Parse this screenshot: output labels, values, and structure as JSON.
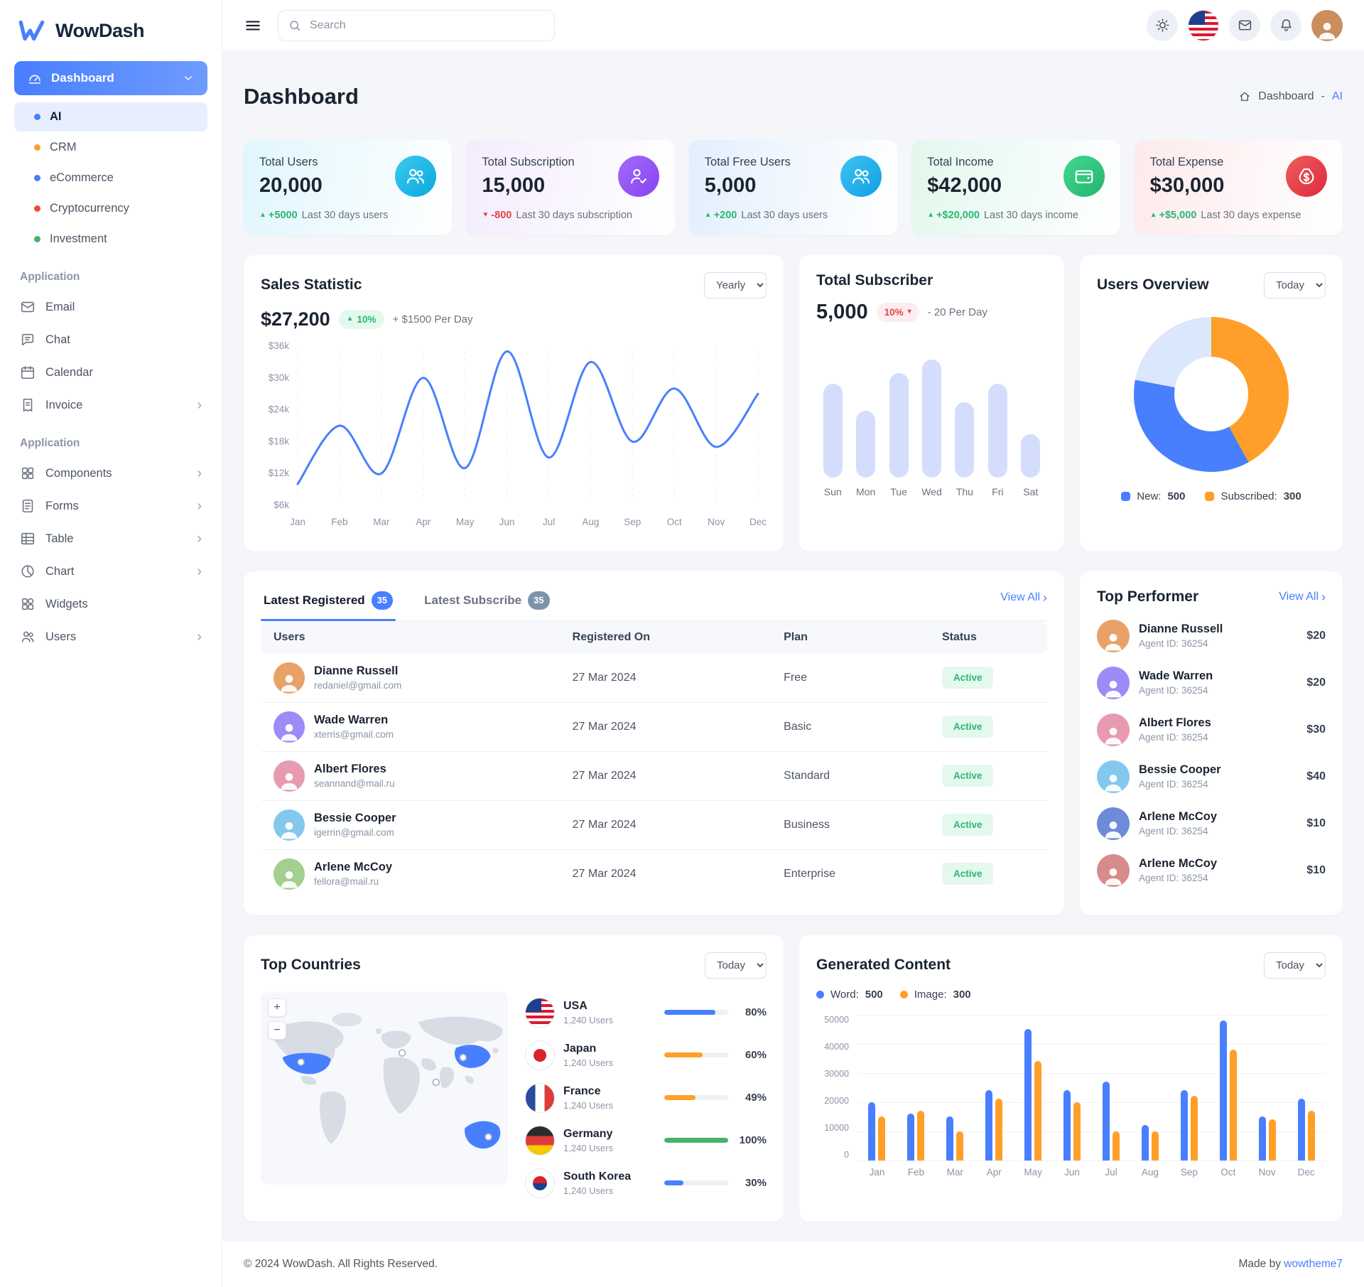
{
  "brand": {
    "name": "WowDash"
  },
  "topbar": {
    "search_placeholder": "Search"
  },
  "sidebar": {
    "dashboard": {
      "label": "Dashboard",
      "icon": "speedometer",
      "items": [
        {
          "label": "AI",
          "dot": "#487fff",
          "active": true
        },
        {
          "label": "CRM",
          "dot": "#ff9f29"
        },
        {
          "label": "eCommerce",
          "dot": "#487fff"
        },
        {
          "label": "Cryptocurrency",
          "dot": "#ef4a3c"
        },
        {
          "label": "Investment",
          "dot": "#45b369"
        }
      ]
    },
    "sections": [
      {
        "label": "Application",
        "items": [
          {
            "label": "Email",
            "icon": "email",
            "chevron": ""
          },
          {
            "label": "Chat",
            "icon": "chat",
            "chevron": ""
          },
          {
            "label": "Calendar",
            "icon": "calendar",
            "chevron": ""
          },
          {
            "label": "Invoice",
            "icon": "invoice",
            "chevron": "›"
          }
        ]
      },
      {
        "label": "Application",
        "items": [
          {
            "label": "Components",
            "icon": "components",
            "chevron": "›"
          },
          {
            "label": "Forms",
            "icon": "forms",
            "chevron": "›"
          },
          {
            "label": "Table",
            "icon": "table",
            "chevron": "›"
          },
          {
            "label": "Chart",
            "icon": "chart",
            "chevron": "›"
          },
          {
            "label": "Widgets",
            "icon": "widgets",
            "chevron": ""
          },
          {
            "label": "Users",
            "icon": "users",
            "chevron": "›"
          }
        ]
      }
    ]
  },
  "page": {
    "title": "Dashboard",
    "breadcrumb_root": "Dashboard",
    "breadcrumb_sep": "-",
    "breadcrumb_current": "AI"
  },
  "stats": [
    {
      "label": "Total Users",
      "value": "20,000",
      "icon": "users-group",
      "tint": "#e0f6fd",
      "icon_bg": "linear-gradient(135deg,#3ec8f0,#0aa8dd)",
      "delta_icon": "▲",
      "delta": "+5000",
      "delta_color": "#2bb673",
      "note": "Last 30 days users"
    },
    {
      "label": "Total Subscription",
      "value": "15,000",
      "icon": "user-check",
      "tint": "#f4ecfd",
      "icon_bg": "linear-gradient(135deg,#a16bfa,#8744ef)",
      "delta_icon": "▼",
      "delta": "-800",
      "delta_color": "#e4443f",
      "note": "Last 30 days subscription"
    },
    {
      "label": "Total Free Users",
      "value": "5,000",
      "icon": "users-group",
      "tint": "#e3effd",
      "icon_bg": "linear-gradient(135deg,#3ec3f0,#11a0e6)",
      "delta_icon": "▲",
      "delta": "+200",
      "delta_color": "#2bb673",
      "note": "Last 30 days users"
    },
    {
      "label": "Total Income",
      "value": "$42,000",
      "icon": "wallet",
      "tint": "#e2f8ed",
      "icon_bg": "linear-gradient(135deg,#42d790,#23b56d)",
      "delta_icon": "▲",
      "delta": "+$20,000",
      "delta_color": "#2bb673",
      "note": "Last 30 days income"
    },
    {
      "label": "Total Expense",
      "value": "$30,000",
      "icon": "money-bag",
      "tint": "#fdeaec",
      "icon_bg": "linear-gradient(135deg,#f05c5c,#dc2b3e)",
      "delta_icon": "▲",
      "delta": "+$5,000",
      "delta_color": "#2bb673",
      "note": "Last 30 days expense"
    }
  ],
  "sales": {
    "title": "Sales Statistic",
    "period": "Yearly",
    "value": "$27,200",
    "badge_icon": "▲",
    "badge": "10%",
    "per_day": "+ $1500 Per Day"
  },
  "subscriber": {
    "title": "Total Subscriber",
    "value": "5,000",
    "badge": "10%",
    "badge_icon": "▾",
    "per_day": "- 20 Per Day"
  },
  "users_overview": {
    "title": "Users Overview",
    "period": "Today",
    "legend": [
      {
        "label": "New:",
        "value": "500",
        "color": "#487fff"
      },
      {
        "label": "Subscribed:",
        "value": "300",
        "color": "#ff9f29"
      }
    ]
  },
  "latest": {
    "tabs": [
      {
        "label": "Latest Registered",
        "count": "35"
      },
      {
        "label": "Latest Subscribe",
        "count": "35"
      }
    ],
    "view_all": "View All",
    "columns": [
      "Users",
      "Registered On",
      "Plan",
      "Status"
    ],
    "rows": [
      {
        "name": "Dianne Russell",
        "email": "redaniel@gmail.com",
        "registered": "27 Mar 2024",
        "plan": "Free",
        "status": "Active",
        "avatar": "#e8a268"
      },
      {
        "name": "Wade Warren",
        "email": "xterris@gmail.com",
        "registered": "27 Mar 2024",
        "plan": "Basic",
        "status": "Active",
        "avatar": "#9b8cf7"
      },
      {
        "name": "Albert Flores",
        "email": "seannand@mail.ru",
        "registered": "27 Mar 2024",
        "plan": "Standard",
        "status": "Active",
        "avatar": "#e79ab0"
      },
      {
        "name": "Bessie Cooper",
        "email": "igerrin@gmail.com",
        "registered": "27 Mar 2024",
        "plan": "Business",
        "status": "Active",
        "avatar": "#84c8ee"
      },
      {
        "name": "Arlene McCoy",
        "email": "fellora@mail.ru",
        "registered": "27 Mar 2024",
        "plan": "Enterprise",
        "status": "Active",
        "avatar": "#a4cf8e"
      }
    ]
  },
  "top_performer": {
    "title": "Top Performer",
    "view_all": "View All",
    "items": [
      {
        "name": "Dianne Russell",
        "sub": "Agent ID: 36254",
        "amount": "$20",
        "avatar": "#e8a268"
      },
      {
        "name": "Wade Warren",
        "sub": "Agent ID: 36254",
        "amount": "$20",
        "avatar": "#9b8cf7"
      },
      {
        "name": "Albert Flores",
        "sub": "Agent ID: 36254",
        "amount": "$30",
        "avatar": "#e79ab0"
      },
      {
        "name": "Bessie Cooper",
        "sub": "Agent ID: 36254",
        "amount": "$40",
        "avatar": "#84c8ee"
      },
      {
        "name": "Arlene McCoy",
        "sub": "Agent ID: 36254",
        "amount": "$10",
        "avatar": "#6d8bd8"
      },
      {
        "name": "Arlene McCoy",
        "sub": "Agent ID: 36254",
        "amount": "$10",
        "avatar": "#d88b8b"
      }
    ]
  },
  "top_countries": {
    "title": "Top Countries",
    "period": "Today",
    "zoom_in": "+",
    "zoom_out": "−",
    "items": [
      {
        "name": "USA",
        "users": "1,240 Users",
        "percent": "80%",
        "bar_color": "#487fff",
        "flag": "usa"
      },
      {
        "name": "Japan",
        "users": "1,240 Users",
        "percent": "60%",
        "bar_color": "#ff9f29",
        "flag": "japan"
      },
      {
        "name": "France",
        "users": "1,240 Users",
        "percent": "49%",
        "bar_color": "#ff9f29",
        "flag": "france"
      },
      {
        "name": "Germany",
        "users": "1,240 Users",
        "percent": "100%",
        "bar_color": "#45b369",
        "flag": "germany"
      },
      {
        "name": "South Korea",
        "users": "1,240 Users",
        "percent": "30%",
        "bar_color": "#487fff",
        "flag": "south-korea"
      }
    ]
  },
  "generated": {
    "title": "Generated Content",
    "period": "Today",
    "legend": [
      {
        "label": "Word:",
        "value": "500",
        "color": "#487fff"
      },
      {
        "label": "Image:",
        "value": "300",
        "color": "#ff9f29"
      }
    ]
  },
  "footer": {
    "copyright": "© 2024 WowDash. All Rights Reserved.",
    "made_by_prefix": "Made by",
    "made_by_link": "wowtheme7"
  },
  "chart_data": [
    {
      "id": "sales",
      "type": "line",
      "title": "Sales Statistic",
      "x": [
        "Jan",
        "Feb",
        "Mar",
        "Apr",
        "May",
        "Jun",
        "Jul",
        "Aug",
        "Sep",
        "Oct",
        "Nov",
        "Dec"
      ],
      "values_k": [
        10,
        21,
        12,
        30,
        13,
        35,
        15,
        33,
        18,
        28,
        17,
        27
      ],
      "ylabels": [
        "$36k",
        "$30k",
        "$24k",
        "$18k",
        "$12k",
        "$6k"
      ],
      "ymin": 6,
      "ymax": 36,
      "ylabel": "",
      "xlabel": "",
      "line_color": "#487fff",
      "grid": "vertical-dashed"
    },
    {
      "id": "subscriber",
      "type": "bar",
      "title": "Total Subscriber",
      "categories": [
        "Sun",
        "Mon",
        "Tue",
        "Wed",
        "Thu",
        "Fri",
        "Sat"
      ],
      "values": [
        70,
        50,
        78,
        88,
        56,
        70,
        32
      ],
      "ymax": 100,
      "bar_color": "#d4defc",
      "note": "relative heights, axis unlabeled"
    },
    {
      "id": "users_overview",
      "type": "pie",
      "title": "Users Overview",
      "segments": [
        {
          "label": "Subscribed",
          "percent": 42,
          "color": "#ff9f29"
        },
        {
          "label": "New",
          "percent": 36,
          "color": "#487fff"
        },
        {
          "label": "Rest",
          "percent": 22,
          "color": "#dbe7fb"
        }
      ]
    },
    {
      "id": "generated_content",
      "type": "bar",
      "title": "Generated Content",
      "categories": [
        "Jan",
        "Feb",
        "Mar",
        "Apr",
        "May",
        "Jun",
        "Jul",
        "Aug",
        "Sep",
        "Oct",
        "Nov",
        "Dec"
      ],
      "series": [
        {
          "name": "Word",
          "color": "#487fff",
          "values": [
            20000,
            16000,
            15000,
            24000,
            45000,
            24000,
            27000,
            12000,
            24000,
            48000,
            15000,
            21000
          ]
        },
        {
          "name": "Image",
          "color": "#ff9f29",
          "values": [
            15000,
            17000,
            10000,
            21000,
            34000,
            20000,
            10000,
            10000,
            22000,
            38000,
            14000,
            17000
          ]
        }
      ],
      "yticks": [
        "50000",
        "40000",
        "30000",
        "20000",
        "10000",
        "0"
      ],
      "ymax": 50000,
      "legend_position": "top-left",
      "grid": "horizontal"
    }
  ]
}
